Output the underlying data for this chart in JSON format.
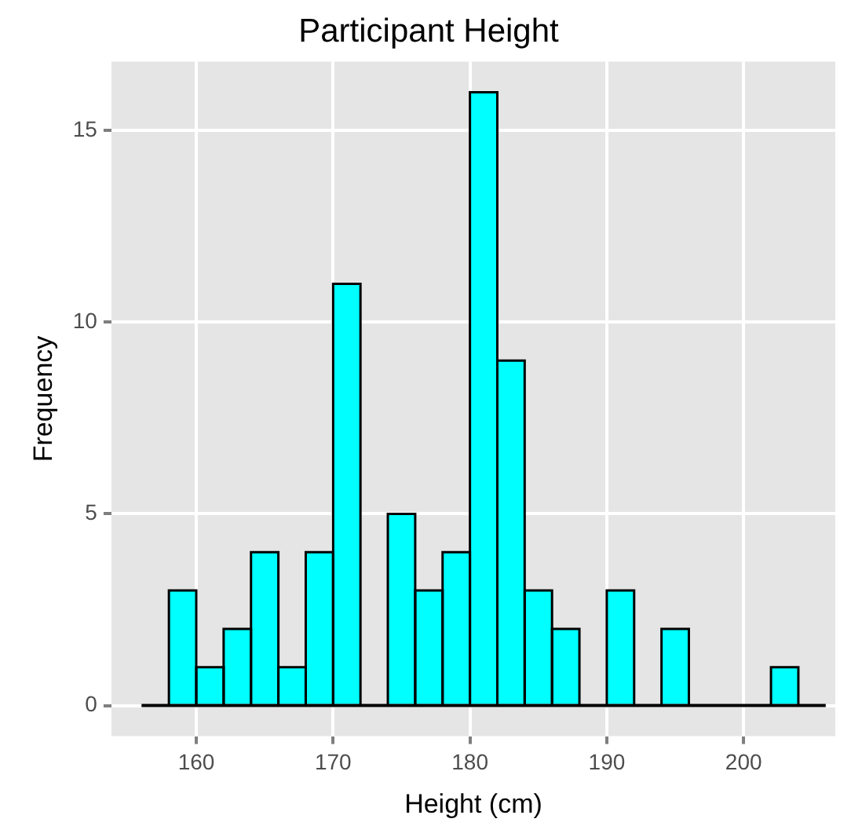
{
  "chart_data": {
    "type": "histogram",
    "title": "Participant Height",
    "xlabel": "Height (cm)",
    "ylabel": "Frequency",
    "bins": [
      156,
      158,
      160,
      162,
      164,
      166,
      168,
      170,
      172,
      174,
      176,
      178,
      180,
      182,
      184,
      186,
      188,
      190,
      192,
      194,
      196,
      198,
      200,
      202,
      204,
      206
    ],
    "values": [
      0,
      3,
      1,
      2,
      4,
      1,
      4,
      11,
      0,
      5,
      3,
      4,
      16,
      9,
      3,
      2,
      0,
      3,
      0,
      2,
      0,
      0,
      0,
      1,
      0
    ],
    "color": "#00ffff",
    "xlim": [
      153.8,
      206.7
    ],
    "xticks": [
      160,
      170,
      180,
      190,
      200
    ],
    "ylim": [
      -0.8,
      16.8
    ],
    "yticks": [
      0,
      5,
      10,
      15
    ],
    "grid": true
  }
}
